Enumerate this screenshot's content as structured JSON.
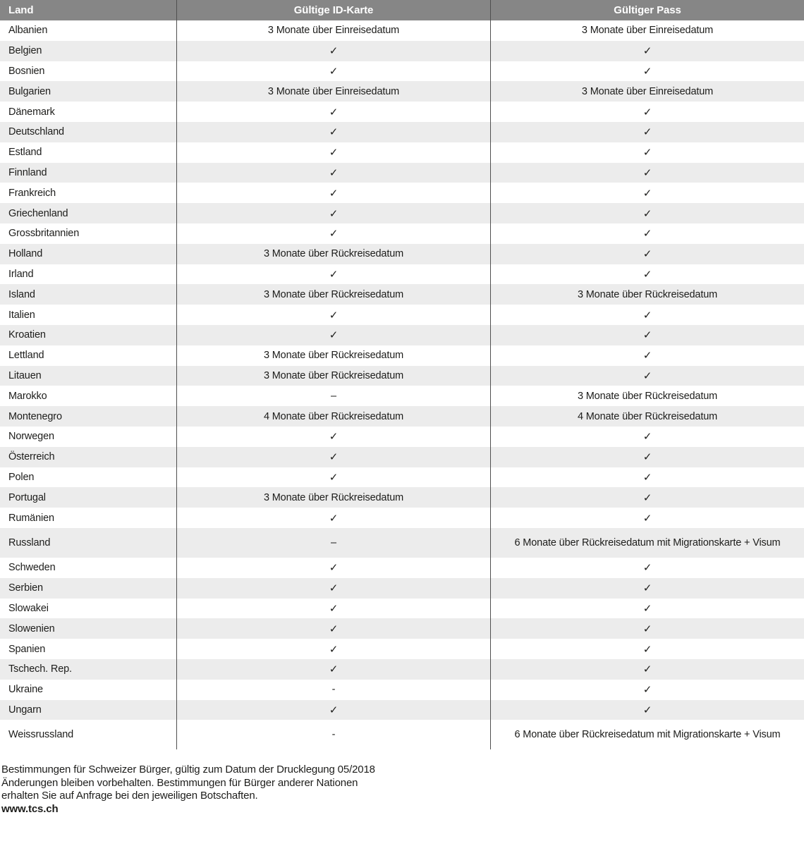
{
  "table": {
    "columns": [
      {
        "label": "Land"
      },
      {
        "label": "Gültige ID-Karte"
      },
      {
        "label": "Gültiger Pass"
      }
    ],
    "rows": [
      {
        "land": "Albanien",
        "id_karte": "3 Monate über Einreisedatum",
        "pass": "3 Monate über Einreisedatum"
      },
      {
        "land": "Belgien",
        "id_karte": "✓",
        "pass": "✓"
      },
      {
        "land": "Bosnien",
        "id_karte": "✓",
        "pass": "✓"
      },
      {
        "land": "Bulgarien",
        "id_karte": "3 Monate über Einreisedatum",
        "pass": "3 Monate über Einreisedatum"
      },
      {
        "land": "Dänemark",
        "id_karte": "✓",
        "pass": "✓"
      },
      {
        "land": "Deutschland",
        "id_karte": "✓",
        "pass": "✓"
      },
      {
        "land": "Estland",
        "id_karte": "✓",
        "pass": "✓"
      },
      {
        "land": "Finnland",
        "id_karte": "✓",
        "pass": "✓"
      },
      {
        "land": "Frankreich",
        "id_karte": "✓",
        "pass": "✓"
      },
      {
        "land": "Griechenland",
        "id_karte": "✓",
        "pass": "✓"
      },
      {
        "land": "Grossbritannien",
        "id_karte": "✓",
        "pass": "✓"
      },
      {
        "land": "Holland",
        "id_karte": "3 Monate über Rückreisedatum",
        "pass": "✓"
      },
      {
        "land": "Irland",
        "id_karte": "✓",
        "pass": "✓"
      },
      {
        "land": "Island",
        "id_karte": "3 Monate über Rückreisedatum",
        "pass": "3 Monate über Rückreisedatum"
      },
      {
        "land": "Italien",
        "id_karte": "✓",
        "pass": "✓"
      },
      {
        "land": "Kroatien",
        "id_karte": "✓",
        "pass": "✓"
      },
      {
        "land": "Lettland",
        "id_karte": "3 Monate über Rückreisedatum",
        "pass": "✓"
      },
      {
        "land": "Litauen",
        "id_karte": "3 Monate über Rückreisedatum",
        "pass": "✓"
      },
      {
        "land": "Marokko",
        "id_karte": "–",
        "pass": "3 Monate über Rückreisedatum"
      },
      {
        "land": "Montenegro",
        "id_karte": "4 Monate über Rückreisedatum",
        "pass": "4 Monate über Rückreisedatum"
      },
      {
        "land": "Norwegen",
        "id_karte": "✓",
        "pass": "✓"
      },
      {
        "land": "Österreich",
        "id_karte": "✓",
        "pass": "✓"
      },
      {
        "land": "Polen",
        "id_karte": "✓",
        "pass": "✓"
      },
      {
        "land": "Portugal",
        "id_karte": "3 Monate über Rückreisedatum",
        "pass": "✓"
      },
      {
        "land": "Rumänien",
        "id_karte": "✓",
        "pass": "✓"
      },
      {
        "land": "Russland",
        "id_karte": "–",
        "pass": "6 Monate über Rückreisedatum mit Migrationskarte + Visum"
      },
      {
        "land": "Schweden",
        "id_karte": "✓",
        "pass": "✓"
      },
      {
        "land": "Serbien",
        "id_karte": "✓",
        "pass": "✓"
      },
      {
        "land": "Slowakei",
        "id_karte": "✓",
        "pass": "✓"
      },
      {
        "land": "Slowenien",
        "id_karte": "✓",
        "pass": "✓"
      },
      {
        "land": "Spanien",
        "id_karte": "✓",
        "pass": "✓"
      },
      {
        "land": "Tschech. Rep.",
        "id_karte": "✓",
        "pass": "✓"
      },
      {
        "land": "Ukraine",
        "id_karte": "-",
        "pass": "✓"
      },
      {
        "land": "Ungarn",
        "id_karte": "✓",
        "pass": "✓"
      },
      {
        "land": "Weissrussland",
        "id_karte": "-",
        "pass": "6 Monate über Rückreisedatum mit Migrationskarte + Visum"
      }
    ]
  },
  "footer": {
    "line1": "Bestimmungen für Schweizer Bürger, gültig zum Datum der Drucklegung 05/2018",
    "line2": "Änderungen bleiben vorbehalten. Bestimmungen für Bürger anderer Nationen",
    "line3": "erhalten Sie auf Anfrage bei den jeweiligen Botschaften.",
    "website": "www.tcs.ch"
  },
  "colors": {
    "header_bg": "#868686",
    "header_text": "#ffffff",
    "stripe_bg": "#ececec",
    "divider": "#4f4f4f",
    "text": "#1d1d1b"
  }
}
